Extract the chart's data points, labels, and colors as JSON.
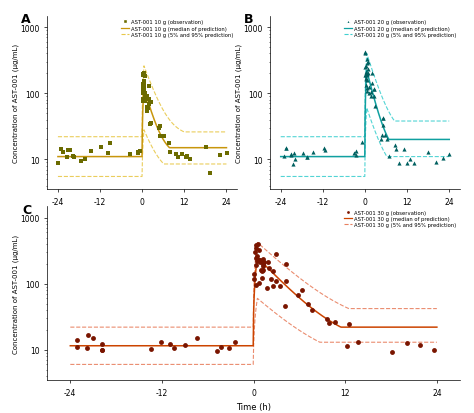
{
  "panel_A": {
    "color_obs": "#6B6B00",
    "color_median": "#C8960C",
    "color_pi": "#E8C84A",
    "marker": "s",
    "label_obs": "AST-001 10 g (observation)",
    "label_median": "AST-001 10 g (median of prediction)",
    "label_pi": "AST-001 10 g (5% and 95% prediction)",
    "pre_med": 11.0,
    "pre_upper": 22.0,
    "pre_lower": 5.5,
    "peak_med": 120.0,
    "peak_upper": 260.0,
    "peak_lower": 28.0,
    "post_floor_med": 15.0,
    "post_floor_upper": 26.0,
    "post_floor_lower": 8.5,
    "decay_med": 2.2,
    "decay_upper": 2.8,
    "decay_lower": 2.8,
    "seed_pre": 101,
    "seed_peak": 201,
    "seed_post": 301
  },
  "panel_B": {
    "color_obs": "#006060",
    "color_median": "#10A0A0",
    "color_pi": "#40D0D0",
    "marker": "^",
    "label_obs": "AST-001 20 g (observation)",
    "label_median": "AST-001 20 g (median of prediction)",
    "label_pi": "AST-001 20 g (5% and 95% prediction)",
    "pre_med": 11.0,
    "pre_upper": 22.0,
    "pre_lower": 5.5,
    "peak_med": 220.0,
    "peak_upper": 400.0,
    "peak_lower": 60.0,
    "post_floor_med": 20.0,
    "post_floor_upper": 38.0,
    "post_floor_lower": 11.0,
    "decay_med": 2.0,
    "decay_upper": 2.5,
    "decay_lower": 2.5,
    "seed_pre": 102,
    "seed_peak": 202,
    "seed_post": 302
  },
  "panel_C": {
    "color_obs": "#7A1500",
    "color_median": "#CC4400",
    "color_pi": "#E88060",
    "marker": "o",
    "label_obs": "AST-001 30 g (observation)",
    "label_median": "AST-001 30 g (median of prediction)",
    "label_pi": "AST-001 30 g (5% and 95% prediction)",
    "pre_med": 11.5,
    "pre_upper": 22.0,
    "pre_lower": 6.0,
    "peak_med": 250.0,
    "peak_upper": 420.0,
    "peak_lower": 60.0,
    "post_floor_med": 22.0,
    "post_floor_upper": 42.0,
    "post_floor_lower": 13.0,
    "decay_med": 3.5,
    "decay_upper": 4.0,
    "decay_lower": 4.0,
    "seed_pre": 103,
    "seed_peak": 203,
    "seed_post": 303
  },
  "xlabel": "Time (h)",
  "ylabel": "Concentration of AST-001 (μg/mL)",
  "xticks": [
    -24,
    -12,
    0,
    12,
    24
  ],
  "xlim": [
    -27,
    27
  ],
  "ylim": [
    3.5,
    1500
  ]
}
